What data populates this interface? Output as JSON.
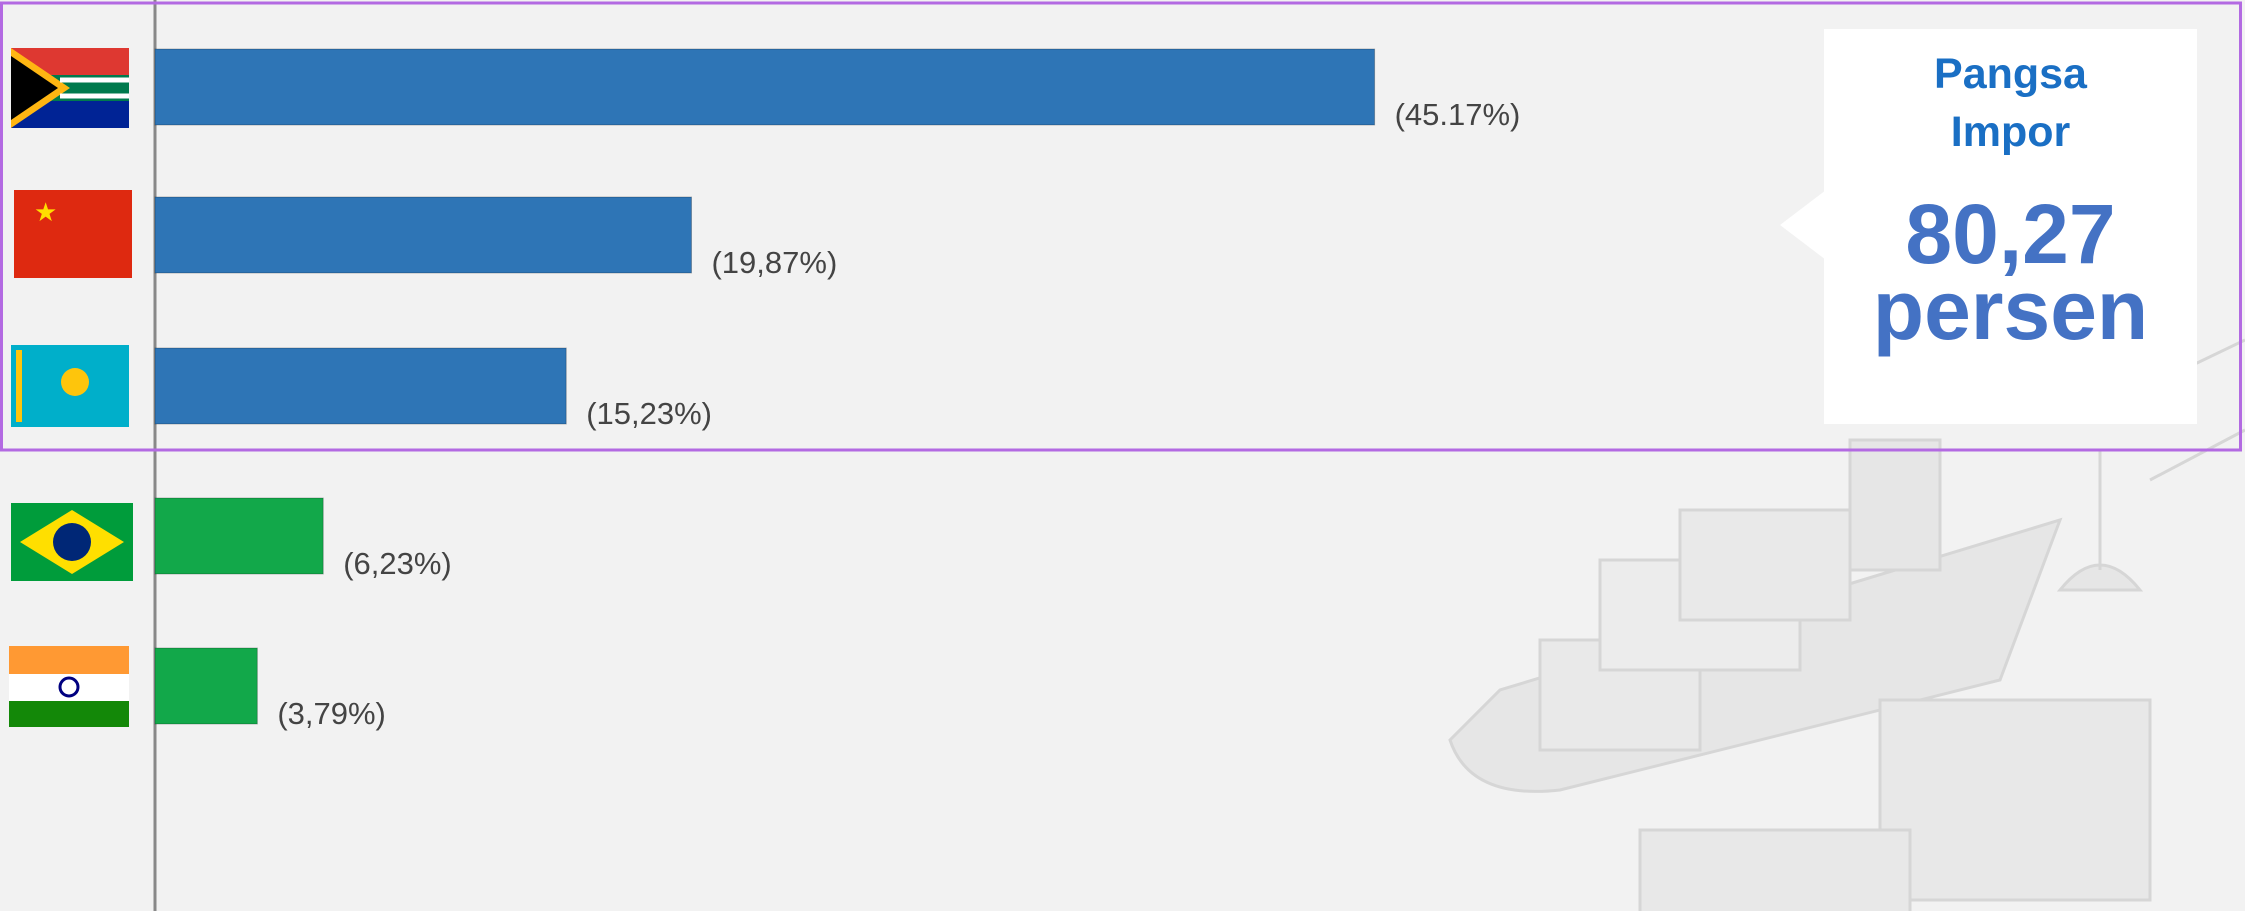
{
  "chart_data": {
    "type": "bar",
    "orientation": "horizontal",
    "categories": [
      null,
      null,
      null,
      null,
      null
    ],
    "values": [
      45.17,
      19.87,
      15.23,
      6.23,
      3.79
    ],
    "value_labels": [
      "(45.17%)",
      "(19,87%)",
      "(15,23%)",
      "(6,23%)",
      "(3,79%)"
    ],
    "colors": [
      "#2e75b6",
      "#2e75b6",
      "#2e75b6",
      "#12a84a",
      "#12a84a"
    ],
    "callout": {
      "title": "Pangsa Impor",
      "value": "80,27 persen"
    }
  }
}
